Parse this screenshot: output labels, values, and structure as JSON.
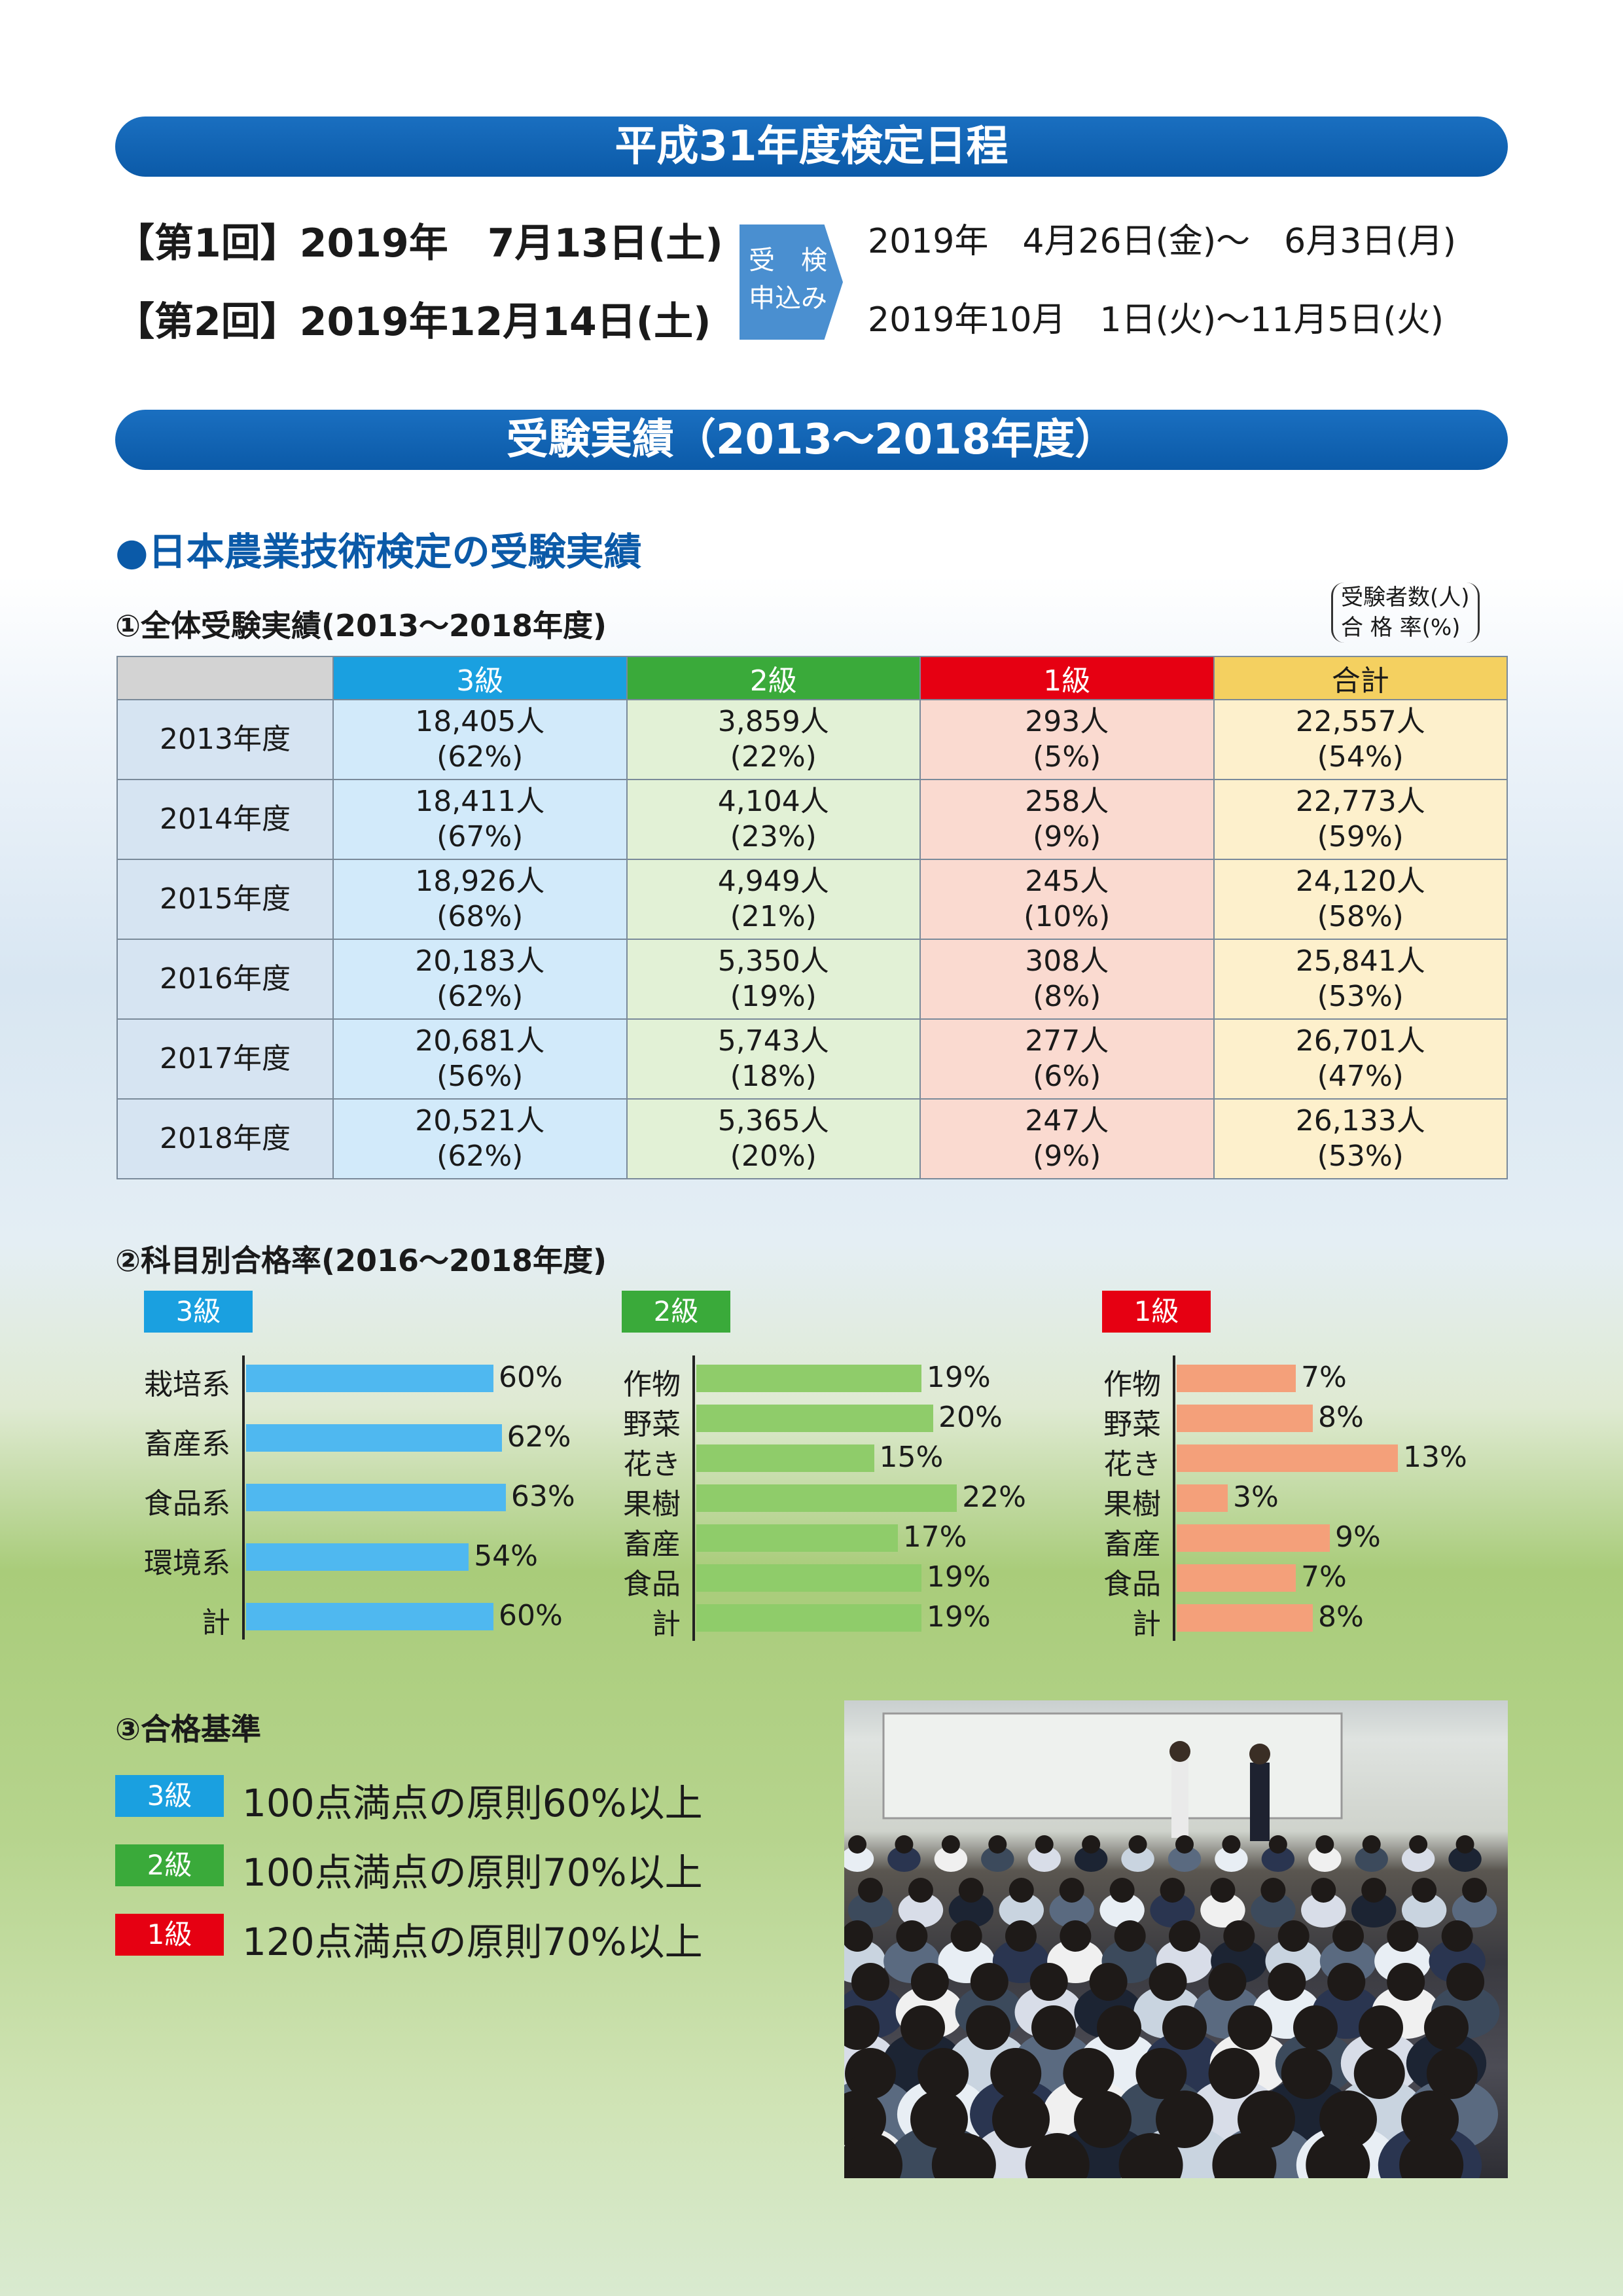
{
  "banner1": "平成31年度検定日程",
  "schedule": {
    "round1": "【第1回】2019年　7月13日(土)",
    "round2": "【第2回】2019年12月14日(土)",
    "apply_label1": "受　検",
    "apply_label2": "申込み",
    "period1": "2019年　4月26日(金)〜　6月3日(月)",
    "period2": "2019年10月　1日(火)〜11月5日(火)"
  },
  "banner2": "受験実績（2013〜2018年度）",
  "section_title": "●日本農業技術検定の受験実績",
  "table_title": "①全体受験実績(2013〜2018年度)",
  "legend_note1": "受験者数(人)",
  "legend_note2": "合 格 率(%)",
  "table": {
    "headers": [
      "",
      "3級",
      "2級",
      "1級",
      "合計"
    ],
    "rows": [
      {
        "year": "2013年度",
        "g3n": "18,405人",
        "g3p": "(62%)",
        "g2n": "3,859人",
        "g2p": "(22%)",
        "g1n": "293人",
        "g1p": "(5%)",
        "tn": "22,557人",
        "tp": "(54%)"
      },
      {
        "year": "2014年度",
        "g3n": "18,411人",
        "g3p": "(67%)",
        "g2n": "4,104人",
        "g2p": "(23%)",
        "g1n": "258人",
        "g1p": "(9%)",
        "tn": "22,773人",
        "tp": "(59%)"
      },
      {
        "year": "2015年度",
        "g3n": "18,926人",
        "g3p": "(68%)",
        "g2n": "4,949人",
        "g2p": "(21%)",
        "g1n": "245人",
        "g1p": "(10%)",
        "tn": "24,120人",
        "tp": "(58%)"
      },
      {
        "year": "2016年度",
        "g3n": "20,183人",
        "g3p": "(62%)",
        "g2n": "5,350人",
        "g2p": "(19%)",
        "g1n": "308人",
        "g1p": "(8%)",
        "tn": "25,841人",
        "tp": "(53%)"
      },
      {
        "year": "2017年度",
        "g3n": "20,681人",
        "g3p": "(56%)",
        "g2n": "5,743人",
        "g2p": "(18%)",
        "g1n": "277人",
        "g1p": "(6%)",
        "tn": "26,701人",
        "tp": "(47%)"
      },
      {
        "year": "2018年度",
        "g3n": "20,521人",
        "g3p": "(62%)",
        "g2n": "5,365人",
        "g2p": "(20%)",
        "g1n": "247人",
        "g1p": "(9%)",
        "tn": "26,133人",
        "tp": "(53%)"
      }
    ]
  },
  "chart_title": "②科目別合格率(2016〜2018年度)",
  "chart_data": [
    {
      "type": "bar",
      "tag": "3級",
      "color": "#4fb8f0",
      "categories": [
        "栽培系",
        "畜産系",
        "食品系",
        "環境系",
        "計"
      ],
      "values": [
        60,
        62,
        63,
        54,
        60
      ],
      "value_labels": [
        "60%",
        "62%",
        "63%",
        "54%",
        "60%"
      ]
    },
    {
      "type": "bar",
      "tag": "2級",
      "color": "#8fcc6a",
      "categories": [
        "作物",
        "野菜",
        "花き",
        "果樹",
        "畜産",
        "食品",
        "計"
      ],
      "values": [
        19,
        20,
        15,
        22,
        17,
        19,
        19
      ],
      "value_labels": [
        "19%",
        "20%",
        "15%",
        "22%",
        "17%",
        "19%",
        "19%"
      ]
    },
    {
      "type": "bar",
      "tag": "1級",
      "color": "#f4a07a",
      "categories": [
        "作物",
        "野菜",
        "花き",
        "果樹",
        "畜産",
        "食品",
        "計"
      ],
      "values": [
        7,
        8,
        13,
        3,
        9,
        7,
        8
      ],
      "value_labels": [
        "7%",
        "8%",
        "13%",
        "3%",
        "9%",
        "7%",
        "8%"
      ]
    }
  ],
  "tag_colors": {
    "g3": "#1aa0e0",
    "g2": "#3aaa3a",
    "g1": "#e60012"
  },
  "criteria_title": "③合格基準",
  "criteria": [
    {
      "tag": "3級",
      "text": "100点満点の原則60%以上"
    },
    {
      "tag": "2級",
      "text": "100点満点の原則70%以上"
    },
    {
      "tag": "1級",
      "text": "120点満点の原則70%以上"
    }
  ]
}
